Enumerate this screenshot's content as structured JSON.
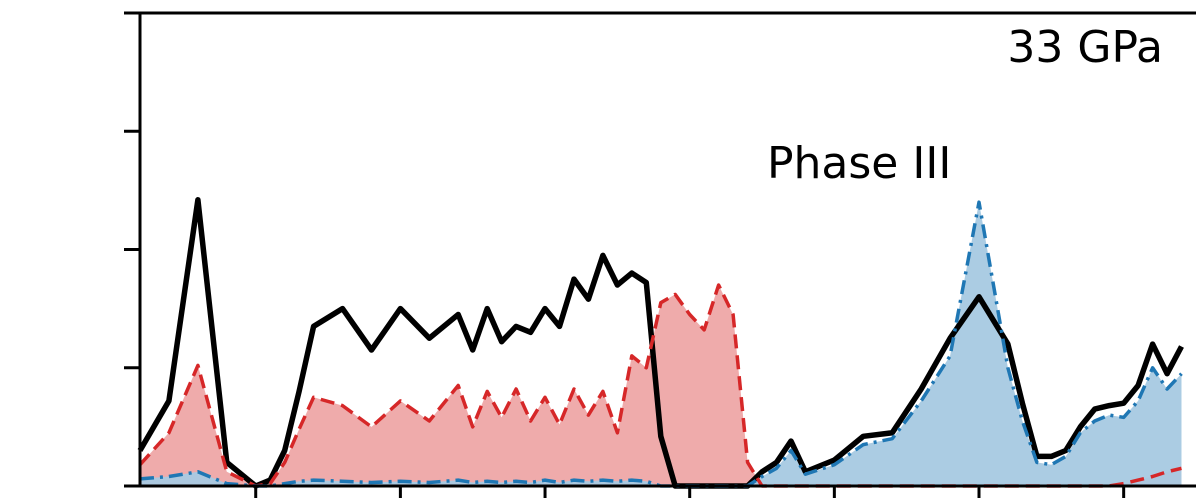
{
  "chart_data": {
    "type": "area",
    "annotations": {
      "pressure": "33 GPa",
      "phase": "Phase III"
    },
    "x": [
      0,
      2,
      4,
      6,
      8,
      9,
      10,
      11,
      12,
      14,
      16,
      18,
      20,
      22,
      23,
      24,
      25,
      26,
      27,
      28,
      29,
      30,
      31,
      32,
      33,
      34,
      35,
      36,
      37,
      38,
      39,
      40,
      41,
      42,
      43,
      44,
      45,
      46,
      48,
      50,
      52,
      54,
      56,
      58,
      60,
      61,
      62,
      63,
      64,
      65,
      66,
      67,
      68,
      69,
      70,
      71,
      72
    ],
    "xlim": [
      0,
      73
    ],
    "ylim": [
      0,
      4
    ],
    "series": [
      {
        "color": "#000000",
        "style": "solid",
        "fill": "none",
        "values": [
          0.3,
          0.72,
          2.42,
          0.2,
          0.0,
          0.05,
          0.3,
          0.8,
          1.35,
          1.5,
          1.15,
          1.5,
          1.25,
          1.45,
          1.15,
          1.5,
          1.22,
          1.35,
          1.3,
          1.5,
          1.35,
          1.75,
          1.58,
          1.95,
          1.7,
          1.8,
          1.72,
          0.42,
          0.0,
          0.0,
          0.0,
          0.0,
          0.0,
          0.0,
          0.12,
          0.2,
          0.38,
          0.12,
          0.22,
          0.42,
          0.45,
          0.82,
          1.25,
          1.6,
          1.2,
          0.7,
          0.25,
          0.25,
          0.3,
          0.5,
          0.65,
          0.68,
          0.7,
          0.85,
          1.2,
          0.95,
          1.18
        ]
      },
      {
        "color": "#d62728",
        "style": "dashed",
        "fill": "#eea6a6",
        "values": [
          0.18,
          0.45,
          1.02,
          0.12,
          0.0,
          0.02,
          0.2,
          0.48,
          0.75,
          0.68,
          0.5,
          0.72,
          0.55,
          0.85,
          0.5,
          0.8,
          0.58,
          0.82,
          0.55,
          0.75,
          0.52,
          0.82,
          0.6,
          0.8,
          0.45,
          1.1,
          1.0,
          1.55,
          1.62,
          1.45,
          1.32,
          1.7,
          1.45,
          0.2,
          0.0,
          0.0,
          0.0,
          0.0,
          0.0,
          0.0,
          0.0,
          0.0,
          0.0,
          0.0,
          0.0,
          0.0,
          0.0,
          0.0,
          0.0,
          0.0,
          0.0,
          0.0,
          0.02,
          0.05,
          0.08,
          0.12,
          0.15
        ]
      },
      {
        "color": "#1f77b4",
        "style": "dashdot",
        "fill": "#a7c9e2",
        "values": [
          0.06,
          0.08,
          0.12,
          0.02,
          0.0,
          0.0,
          0.02,
          0.04,
          0.05,
          0.04,
          0.03,
          0.04,
          0.03,
          0.05,
          0.03,
          0.04,
          0.03,
          0.04,
          0.03,
          0.05,
          0.03,
          0.05,
          0.04,
          0.05,
          0.04,
          0.05,
          0.04,
          0.0,
          0.0,
          0.0,
          0.0,
          0.0,
          0.0,
          0.0,
          0.08,
          0.15,
          0.3,
          0.1,
          0.18,
          0.35,
          0.4,
          0.72,
          1.1,
          2.4,
          1.0,
          0.55,
          0.2,
          0.18,
          0.25,
          0.45,
          0.55,
          0.6,
          0.58,
          0.72,
          1.0,
          0.82,
          0.95
        ]
      }
    ]
  }
}
